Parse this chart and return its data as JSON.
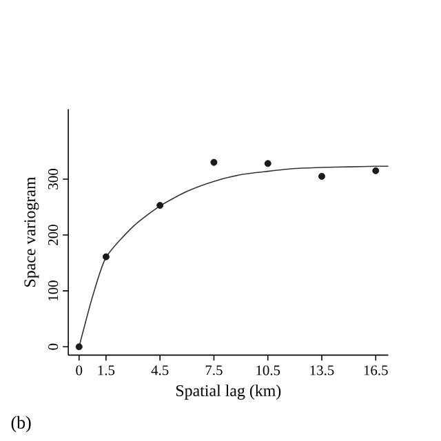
{
  "chart_data": {
    "type": "scatter",
    "xlabel": "Spatial lag (km)",
    "ylabel": "Space variogram",
    "annotations": [
      "(b)"
    ],
    "xlim": [
      -0.6,
      17.2
    ],
    "ylim": [
      -15,
      425
    ],
    "xticks": [
      0,
      1.5,
      4.5,
      7.5,
      10.5,
      13.5,
      16.5
    ],
    "yticks": [
      0,
      100,
      200,
      300
    ],
    "marker": "circle",
    "series": [
      {
        "color": "#1a1a1a",
        "x": [
          0,
          1.5,
          4.5,
          7.5,
          10.5,
          13.5,
          16.5
        ],
        "values": [
          0,
          161,
          253,
          330,
          328,
          305,
          315
        ]
      },
      {
        "type": "line",
        "color": "#333333",
        "line_style": "solid",
        "marker": "none",
        "x": [
          0,
          0.75,
          1.5,
          3,
          4.5,
          6,
          7.5,
          9,
          10.5,
          12,
          13.5,
          15,
          16.5,
          17.2
        ],
        "values": [
          0,
          90,
          160,
          215,
          252,
          278,
          296,
          308,
          314,
          319,
          321,
          322,
          323,
          323
        ]
      }
    ]
  }
}
